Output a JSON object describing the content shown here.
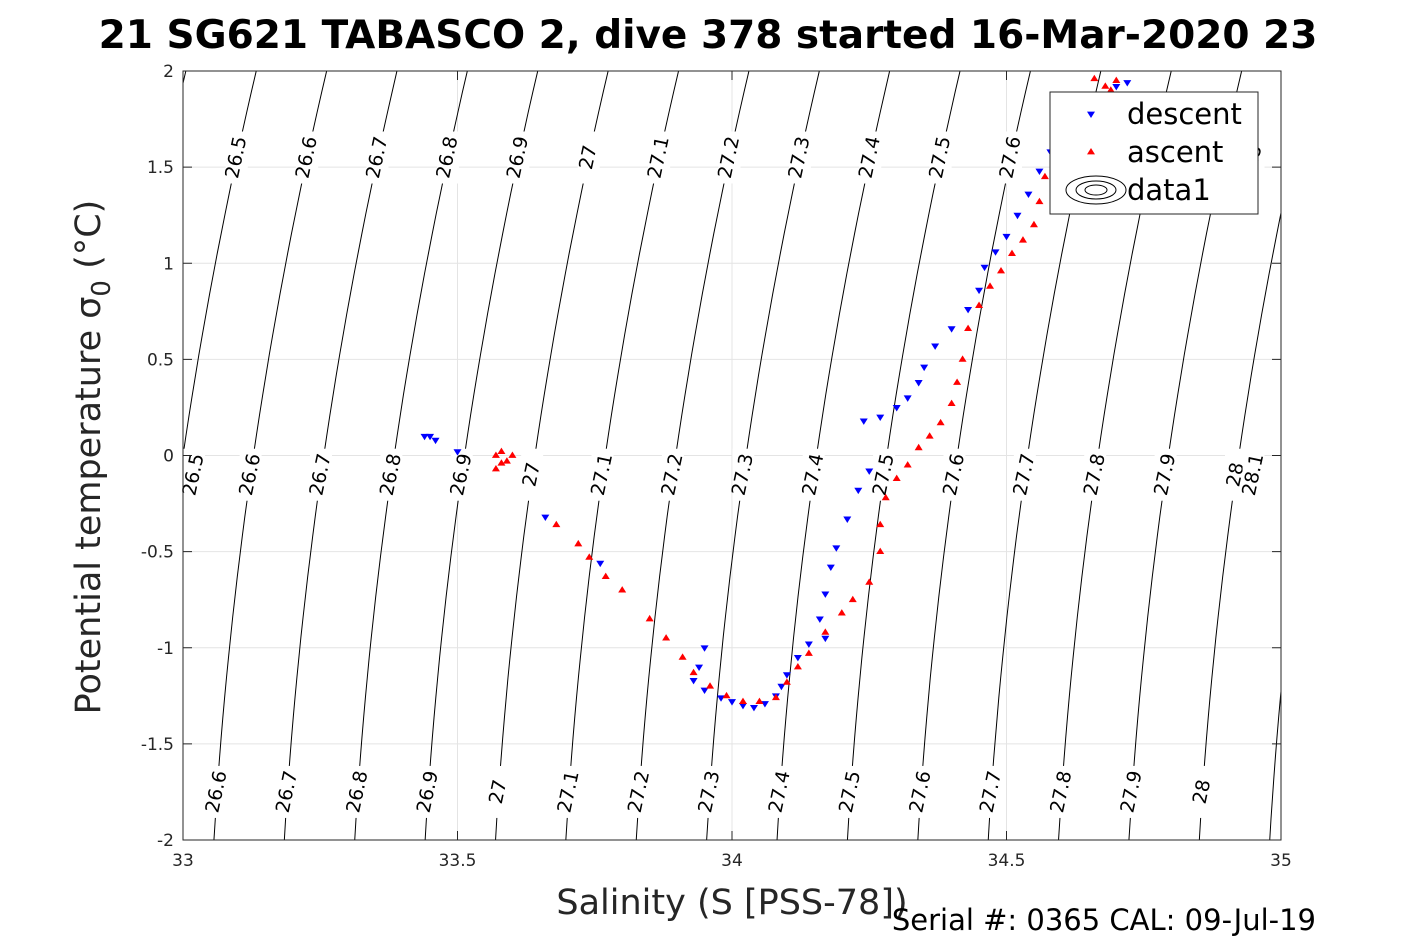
{
  "chart_data": {
    "type": "scatter",
    "title": "21 SG621 TABASCO 2, dive 378 started 16-Mar-2020 23",
    "xlabel": "Salinity (S [PSS-78])",
    "ylabel_main": "Potential temperature σ",
    "ylabel_sub": "0",
    "ylabel_unit": " (°C)",
    "footer": "Serial #: 0365  CAL: 09-Jul-19",
    "xlim": [
      33,
      35
    ],
    "ylim": [
      -2,
      2
    ],
    "grid": true,
    "xticks": [
      33,
      33.5,
      34,
      34.5,
      35
    ],
    "xtick_labels": [
      "33",
      "33.5",
      "34",
      "34.5",
      "35"
    ],
    "yticks": [
      2,
      1.5,
      1,
      0.5,
      0,
      -0.5,
      -1,
      -1.5,
      -2
    ],
    "ytick_labels": [
      "2",
      "1.5",
      "1",
      "0.5",
      "0",
      "-0.5",
      "-1",
      "-1.5",
      "-2"
    ],
    "legend": {
      "placement": "top-right",
      "entries": [
        {
          "label": "descent",
          "color": "#0000ff",
          "marker": "triangle-down"
        },
        {
          "label": "ascent",
          "color": "#ff0000",
          "marker": "triangle-up"
        },
        {
          "label": "data1",
          "color": "#000000",
          "marker": "contour"
        }
      ]
    },
    "contour_labels": {
      "top": [
        "26.5",
        "26.6",
        "26.7",
        "26.8",
        "26.9",
        "27",
        "27.1",
        "27.2",
        "27.3",
        "27.4",
        "27.5",
        "27.6",
        "28"
      ],
      "middle": [
        "26.5",
        "26.6",
        "26.7",
        "26.8",
        "26.9",
        "27",
        "27.1",
        "27.2",
        "27.3",
        "27.4",
        "27.5",
        "27.6",
        "27.7",
        "27.8",
        "27.9",
        "28",
        "28.1"
      ],
      "bottom": [
        "26.6",
        "26.7",
        "26.8",
        "26.9",
        "27",
        "27.1",
        "27.2",
        "27.3",
        "27.4",
        "27.5",
        "27.6",
        "27.7",
        "27.8",
        "27.9",
        "28"
      ]
    },
    "series": [
      {
        "name": "descent",
        "color": "#0000ff",
        "marker": "triangle-down",
        "points": [
          [
            33.44,
            0.1
          ],
          [
            33.45,
            0.1
          ],
          [
            33.46,
            0.08
          ],
          [
            33.5,
            0.02
          ],
          [
            33.66,
            -0.32
          ],
          [
            33.76,
            -0.56
          ],
          [
            33.95,
            -1.0
          ],
          [
            33.94,
            -1.1
          ],
          [
            33.93,
            -1.17
          ],
          [
            33.95,
            -1.22
          ],
          [
            33.98,
            -1.26
          ],
          [
            34.0,
            -1.28
          ],
          [
            34.02,
            -1.3
          ],
          [
            34.04,
            -1.31
          ],
          [
            34.06,
            -1.29
          ],
          [
            34.08,
            -1.25
          ],
          [
            34.09,
            -1.2
          ],
          [
            34.1,
            -1.14
          ],
          [
            34.12,
            -1.05
          ],
          [
            34.14,
            -0.98
          ],
          [
            34.17,
            -0.95
          ],
          [
            34.16,
            -0.85
          ],
          [
            34.17,
            -0.72
          ],
          [
            34.18,
            -0.58
          ],
          [
            34.19,
            -0.48
          ],
          [
            34.21,
            -0.33
          ],
          [
            34.23,
            -0.18
          ],
          [
            34.25,
            -0.08
          ],
          [
            34.24,
            0.18
          ],
          [
            34.27,
            0.2
          ],
          [
            34.3,
            0.25
          ],
          [
            34.32,
            0.3
          ],
          [
            34.34,
            0.38
          ],
          [
            34.35,
            0.46
          ],
          [
            34.37,
            0.57
          ],
          [
            34.4,
            0.66
          ],
          [
            34.43,
            0.76
          ],
          [
            34.45,
            0.86
          ],
          [
            34.46,
            0.98
          ],
          [
            34.48,
            1.06
          ],
          [
            34.5,
            1.14
          ],
          [
            34.52,
            1.25
          ],
          [
            34.54,
            1.36
          ],
          [
            34.56,
            1.48
          ],
          [
            34.58,
            1.58
          ],
          [
            34.61,
            1.68
          ],
          [
            34.64,
            1.77
          ],
          [
            34.67,
            1.85
          ],
          [
            34.7,
            1.92
          ],
          [
            34.72,
            1.94
          ]
        ]
      },
      {
        "name": "ascent",
        "color": "#ff0000",
        "marker": "triangle-up",
        "points": [
          [
            33.57,
            0.0
          ],
          [
            33.58,
            0.02
          ],
          [
            33.6,
            0.0
          ],
          [
            33.59,
            -0.03
          ],
          [
            33.57,
            -0.07
          ],
          [
            33.58,
            -0.04
          ],
          [
            33.68,
            -0.36
          ],
          [
            33.72,
            -0.46
          ],
          [
            33.74,
            -0.53
          ],
          [
            33.77,
            -0.63
          ],
          [
            33.8,
            -0.7
          ],
          [
            33.85,
            -0.85
          ],
          [
            33.88,
            -0.95
          ],
          [
            33.91,
            -1.05
          ],
          [
            33.93,
            -1.13
          ],
          [
            33.96,
            -1.2
          ],
          [
            33.99,
            -1.25
          ],
          [
            34.02,
            -1.28
          ],
          [
            34.05,
            -1.28
          ],
          [
            34.08,
            -1.26
          ],
          [
            34.1,
            -1.18
          ],
          [
            34.12,
            -1.1
          ],
          [
            34.14,
            -1.03
          ],
          [
            34.17,
            -0.92
          ],
          [
            34.2,
            -0.82
          ],
          [
            34.22,
            -0.75
          ],
          [
            34.25,
            -0.66
          ],
          [
            34.27,
            -0.5
          ],
          [
            34.27,
            -0.36
          ],
          [
            34.28,
            -0.22
          ],
          [
            34.3,
            -0.12
          ],
          [
            34.32,
            -0.05
          ],
          [
            34.34,
            0.04
          ],
          [
            34.36,
            0.1
          ],
          [
            34.38,
            0.17
          ],
          [
            34.4,
            0.27
          ],
          [
            34.41,
            0.38
          ],
          [
            34.42,
            0.5
          ],
          [
            34.43,
            0.66
          ],
          [
            34.45,
            0.78
          ],
          [
            34.47,
            0.88
          ],
          [
            34.49,
            0.96
          ],
          [
            34.51,
            1.05
          ],
          [
            34.53,
            1.12
          ],
          [
            34.55,
            1.2
          ],
          [
            34.56,
            1.32
          ],
          [
            34.57,
            1.45
          ],
          [
            34.59,
            1.55
          ],
          [
            34.61,
            1.63
          ],
          [
            34.63,
            1.72
          ],
          [
            34.66,
            1.82
          ],
          [
            34.69,
            1.9
          ],
          [
            34.7,
            1.95
          ],
          [
            34.66,
            1.96
          ],
          [
            34.68,
            1.92
          ]
        ]
      }
    ]
  }
}
